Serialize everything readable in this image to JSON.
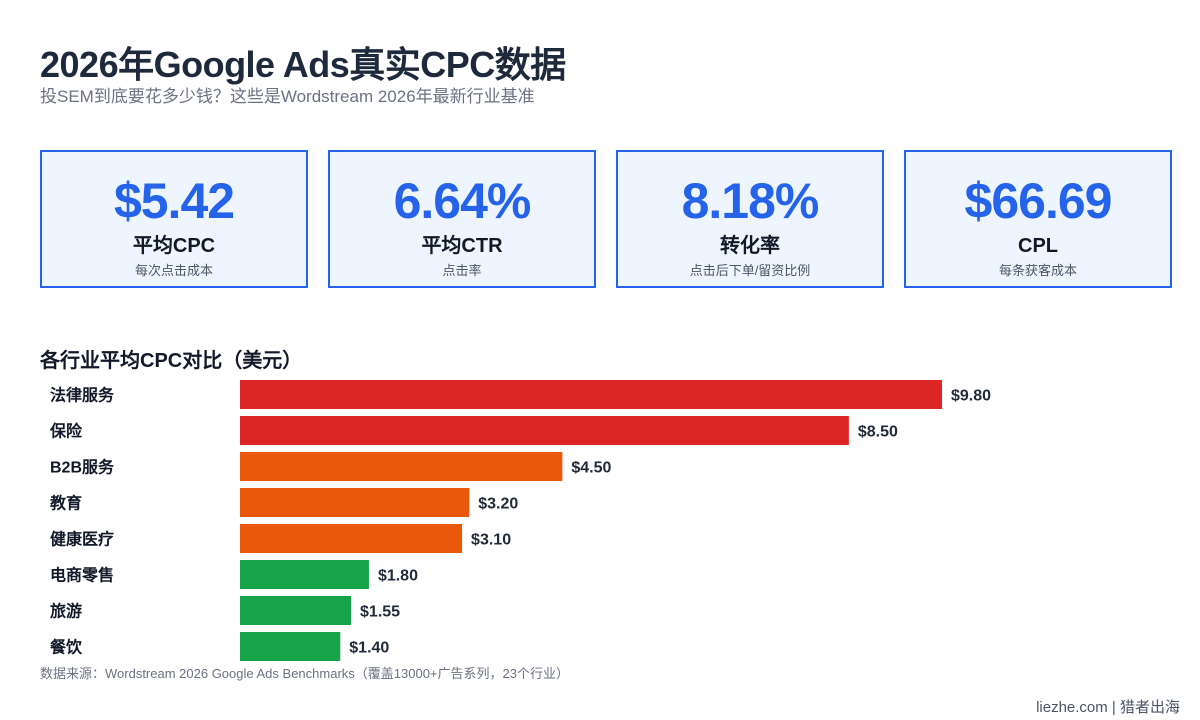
{
  "header": {
    "title": "2026年Google Ads真实CPC数据",
    "subtitle": "投SEM到底要花多少钱？这些是Wordstream 2026年最新行业基准"
  },
  "kpis": [
    {
      "value": "$5.42",
      "label": "平均CPC",
      "sub": "每次点击成本"
    },
    {
      "value": "6.64%",
      "label": "平均CTR",
      "sub": "点击率"
    },
    {
      "value": "8.18%",
      "label": "转化率",
      "sub": "点击后下单/留资比例"
    },
    {
      "value": "$66.69",
      "label": "CPL",
      "sub": "每条获客成本"
    }
  ],
  "chart_data": {
    "type": "bar",
    "orientation": "horizontal",
    "title": "各行业平均CPC对比（美元）",
    "categories": [
      "法律服务",
      "保险",
      "B2B服务",
      "教育",
      "健康医疗",
      "电商零售",
      "旅游",
      "餐饮"
    ],
    "values": [
      9.8,
      8.5,
      4.5,
      3.2,
      3.1,
      1.8,
      1.55,
      1.4
    ],
    "value_labels": [
      "$9.80",
      "$8.50",
      "$4.50",
      "$3.20",
      "$3.10",
      "$1.80",
      "$1.55",
      "$1.40"
    ],
    "bar_colors": [
      "#dc2626",
      "#dc2626",
      "#ea580c",
      "#ea580c",
      "#ea580c",
      "#16a34a",
      "#16a34a",
      "#16a34a"
    ],
    "xlim": [
      0,
      9.8
    ],
    "grid": false,
    "legend": "none"
  },
  "footer": {
    "source": "数据来源：Wordstream 2026 Google Ads Benchmarks（覆盖13000+广告系列，23个行业）",
    "credit": "liezhe.com | 猎者出海"
  },
  "colors": {
    "accent": "#2563eb",
    "card_bg": "#eef5ff",
    "high": "#dc2626",
    "mid": "#ea580c",
    "low": "#16a34a"
  }
}
